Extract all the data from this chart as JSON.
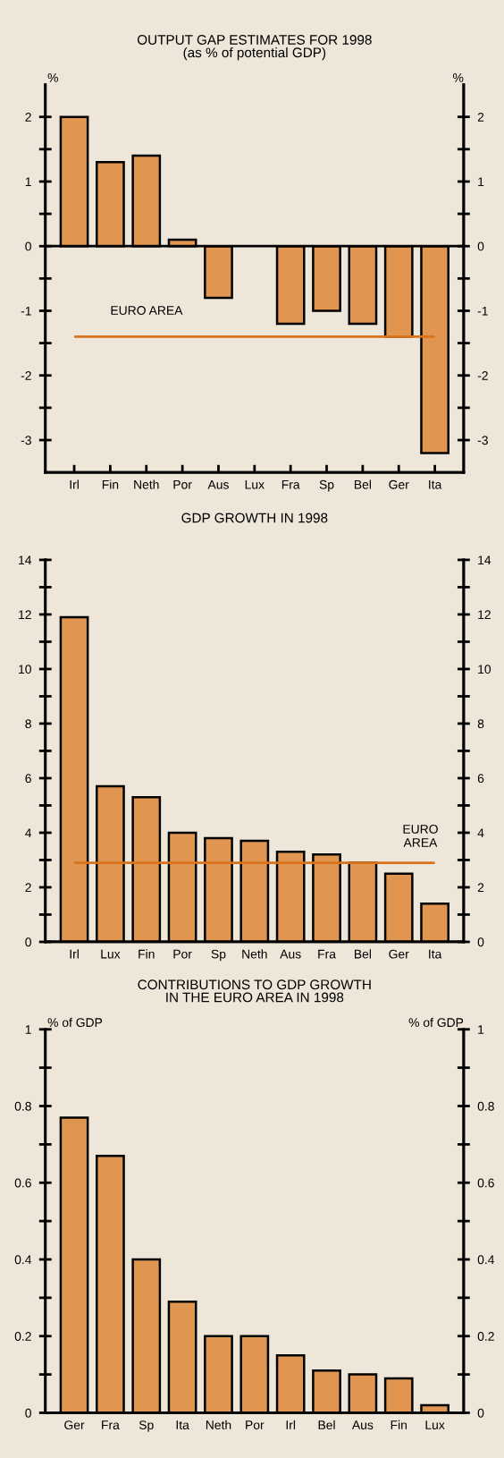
{
  "chart_data": [
    {
      "type": "bar",
      "title": "OUTPUT GAP ESTIMATES FOR 1998\n(as % of potential GDP)",
      "ylabel": "%",
      "y2label": "%",
      "categories": [
        "Irl",
        "Fin",
        "Neth",
        "Por",
        "Aus",
        "Lux",
        "Fra",
        "Sp",
        "Bel",
        "Ger",
        "Ita"
      ],
      "values": [
        2,
        1.3,
        1.4,
        0.1,
        -0.8,
        null,
        -1.2,
        -1.0,
        -1.2,
        -1.4,
        -3.2
      ],
      "color": "#e09650",
      "ylim": [
        -3.5,
        2.5
      ],
      "yticks": [
        -3,
        {
          "value": -2.5,
          "label": null
        },
        -2,
        {
          "value": -1.5,
          "label": null
        },
        -1,
        {
          "value": -0.5,
          "label": null
        },
        0,
        {
          "value": 0.5,
          "label": null
        },
        1,
        {
          "value": 1.5,
          "label": null
        },
        2
      ],
      "y2lim": [
        -3.5,
        2.5
      ],
      "y2ticks": [
        -3,
        {
          "value": -2.5,
          "label": null
        },
        -2,
        {
          "value": -1.5,
          "label": null
        },
        -1,
        {
          "value": -0.5,
          "label": null
        },
        0,
        {
          "value": 0.5,
          "label": null
        },
        1,
        {
          "value": 1.5,
          "label": null
        },
        2
      ],
      "ref_lines": [
        {
          "axis": "y",
          "value": 0,
          "color": "#000000"
        },
        {
          "axis": "y",
          "value": -1.4,
          "label": "EURO AREA",
          "color": "#d9731c"
        }
      ],
      "grid": false,
      "legend": false
    },
    {
      "type": "bar",
      "title": "GDP GROWTH IN 1998",
      "categories": [
        "Irl",
        "Lux",
        "Fin",
        "Por",
        "Sp",
        "Neth",
        "Aus",
        "Fra",
        "Bel",
        "Ger",
        "Ita"
      ],
      "values": [
        11.9,
        5.7,
        5.3,
        4.0,
        3.8,
        3.7,
        3.3,
        3.2,
        2.9,
        2.5,
        1.4
      ],
      "color": "#e09650",
      "ylim": [
        0,
        14
      ],
      "yticks": [
        0,
        {
          "value": 1,
          "label": null
        },
        2,
        {
          "value": 3,
          "label": null
        },
        4,
        {
          "value": 5,
          "label": null
        },
        6,
        {
          "value": 7,
          "label": null
        },
        8,
        {
          "value": 9,
          "label": null
        },
        10,
        {
          "value": 11,
          "label": null
        },
        12,
        {
          "value": 13,
          "label": null
        },
        14
      ],
      "y2lim": [
        0,
        14
      ],
      "y2ticks": [
        0,
        {
          "value": 1,
          "label": null
        },
        2,
        {
          "value": 3,
          "label": null
        },
        4,
        {
          "value": 5,
          "label": null
        },
        6,
        {
          "value": 7,
          "label": null
        },
        8,
        {
          "value": 9,
          "label": null
        },
        10,
        {
          "value": 11,
          "label": null
        },
        12,
        {
          "value": 13,
          "label": null
        },
        14
      ],
      "ref_lines": [
        {
          "axis": "y",
          "value": 2.9,
          "label": "EURO\nAREA",
          "color": "#d9731c"
        }
      ],
      "grid": false,
      "legend": false
    },
    {
      "type": "bar",
      "title": "CONTRIBUTIONS TO GDP GROWTH\nIN THE EURO AREA IN 1998",
      "ylabel": "% of GDP",
      "y2label": "% of GDP",
      "categories": [
        "Ger",
        "Fra",
        "Sp",
        "Ita",
        "Neth",
        "Por",
        "Irl",
        "Bel",
        "Aus",
        "Fin",
        "Lux"
      ],
      "values": [
        0.77,
        0.67,
        0.4,
        0.29,
        0.2,
        0.2,
        0.15,
        0.11,
        0.1,
        0.09,
        0.02
      ],
      "color": "#e09650",
      "ylim": [
        0,
        1
      ],
      "yticks": [
        0,
        {
          "value": 0.1,
          "label": null
        },
        0.2,
        {
          "value": 0.3,
          "label": null
        },
        0.4,
        {
          "value": 0.5,
          "label": null
        },
        0.6,
        {
          "value": 0.7,
          "label": null
        },
        0.8,
        {
          "value": 0.9,
          "label": null
        },
        1
      ],
      "y2lim": [
        0,
        1
      ],
      "y2ticks": [
        0,
        {
          "value": 0.1,
          "label": null
        },
        0.2,
        {
          "value": 0.3,
          "label": null
        },
        0.4,
        {
          "value": 0.5,
          "label": null
        },
        0.6,
        {
          "value": 0.7,
          "label": null
        },
        0.8,
        {
          "value": 0.9,
          "label": null
        },
        1
      ],
      "grid": false,
      "legend": false
    }
  ]
}
